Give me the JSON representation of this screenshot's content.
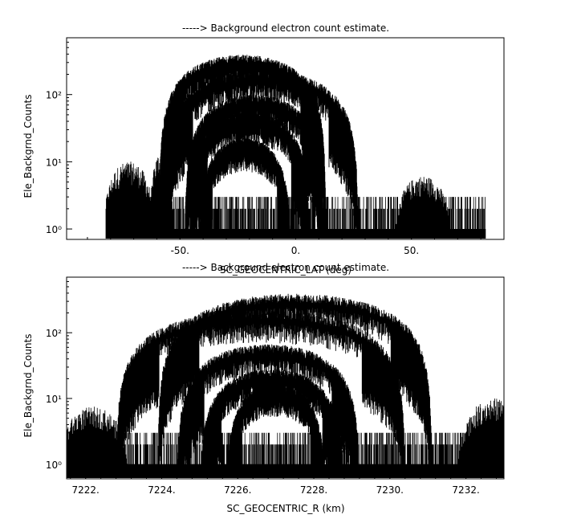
{
  "chart_data": [
    {
      "type": "scatter",
      "title": "-----> Background electron count estimate.",
      "xlabel": "SC_GEOCENTRIC_LAT (deg)",
      "ylabel": "Ele_Backgrnd_Counts",
      "xlim": [
        -99,
        90
      ],
      "ylim": [
        0.7,
        700
      ],
      "y_scale": "log",
      "x_ticks": [
        -50,
        0,
        50
      ],
      "x_tick_labels": [
        "-50.",
        "0.",
        "50."
      ],
      "y_ticks": [
        1,
        10,
        100
      ],
      "y_tick_labels": [
        "10⁰",
        "10¹",
        "10²"
      ],
      "x_data_range": [
        -82,
        82
      ],
      "baseline_levels": [
        1,
        2,
        3
      ],
      "series": [
        {
          "center": -23,
          "halfwidth": 36,
          "peak": 350
        },
        {
          "center": -15,
          "halfwidth": 42,
          "peak": 210
        },
        {
          "center": -18,
          "halfwidth": 30,
          "peak": 90
        },
        {
          "center": -20,
          "halfwidth": 26,
          "peak": 50
        },
        {
          "center": -22,
          "halfwidth": 20,
          "peak": 20
        }
      ],
      "background_bumps": [
        {
          "center": -72,
          "halfwidth": 11,
          "level": 7
        },
        {
          "center": -58,
          "halfwidth": 5,
          "level": 10
        },
        {
          "center": 55,
          "halfwidth": 12,
          "level": 4
        }
      ],
      "grid": false,
      "legend": "none"
    },
    {
      "type": "scatter",
      "title": "-----> Background electron count estimate.",
      "xlabel": "SC_GEOCENTRIC_R (km)",
      "ylabel": "Ele_Backgrnd_Counts",
      "xlim": [
        7221.5,
        7233.0
      ],
      "ylim": [
        0.6,
        700
      ],
      "y_scale": "log",
      "x_ticks": [
        7222,
        7224,
        7226,
        7228,
        7230,
        7232
      ],
      "x_tick_labels": [
        "7222.",
        "7224.",
        "7226.",
        "7228.",
        "7230.",
        "7232."
      ],
      "y_ticks": [
        1,
        10,
        100
      ],
      "y_tick_labels": [
        "10⁰",
        "10¹",
        "10²"
      ],
      "x_data_range": [
        7221.5,
        7233.0
      ],
      "baseline_levels": [
        1,
        2,
        3
      ],
      "series": [
        {
          "center": 7227.5,
          "halfwidth": 3.6,
          "peak": 350
        },
        {
          "center": 7226.6,
          "halfwidth": 3.8,
          "peak": 200
        },
        {
          "center": 7226.8,
          "halfwidth": 2.4,
          "peak": 60
        },
        {
          "center": 7226.9,
          "halfwidth": 1.9,
          "peak": 25
        },
        {
          "center": 7227.0,
          "halfwidth": 1.3,
          "peak": 15
        }
      ],
      "background_bumps": [
        {
          "center": 7222.2,
          "halfwidth": 0.9,
          "level": 5
        },
        {
          "center": 7232.8,
          "halfwidth": 1.0,
          "level": 7
        }
      ],
      "grid": false,
      "legend": "none"
    }
  ]
}
